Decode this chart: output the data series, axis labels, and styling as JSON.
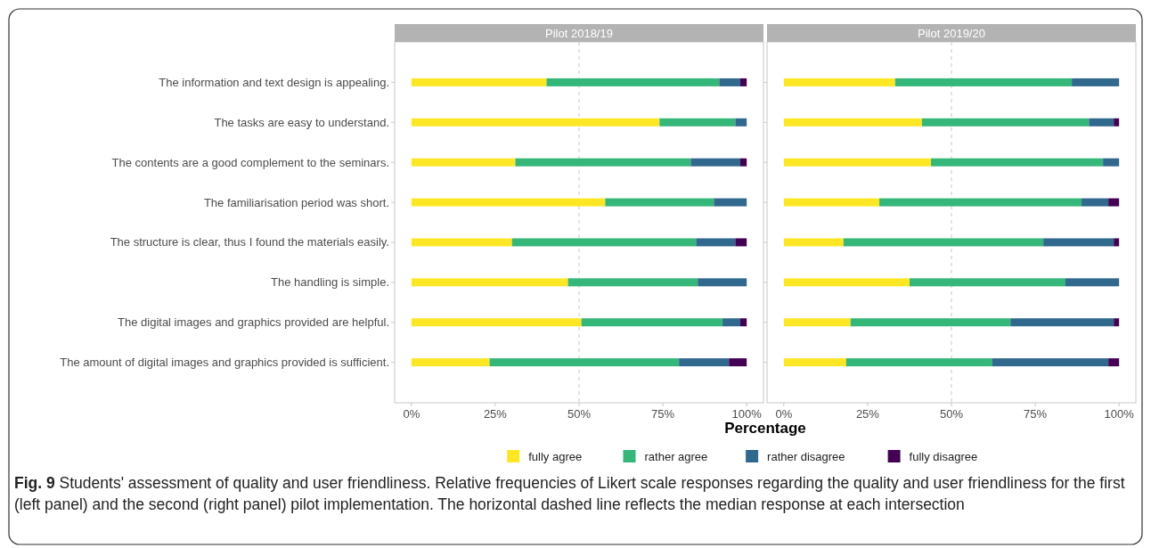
{
  "chart_data": [
    {
      "type": "bar",
      "orientation": "horizontal",
      "stacked": true,
      "title": "Pilot 2018/19",
      "xlabel": "Percentage",
      "categories": [
        "The information and text design is appealing.",
        "The tasks are easy to understand.",
        "The contents are a good complement to the seminars.",
        "The familiarisation period was short.",
        "The structure is clear, thus I found the materials easily.",
        "The handling is simple.",
        "The digital images and graphics provided are helpful.",
        "The amount of digital images and graphics provided is sufficient."
      ],
      "series": [
        {
          "name": "fully agree",
          "color": "#fde725",
          "values": [
            40.3,
            74.0,
            31.0,
            57.8,
            30.0,
            46.7,
            50.7,
            23.3
          ]
        },
        {
          "name": "rather agree",
          "color": "#35b779",
          "values": [
            51.5,
            22.6,
            52.3,
            32.4,
            54.9,
            38.7,
            42.1,
            56.5
          ]
        },
        {
          "name": "rather disagree",
          "color": "#31688e",
          "values": [
            6.3,
            3.4,
            14.8,
            9.8,
            11.7,
            14.6,
            5.3,
            14.9
          ]
        },
        {
          "name": "fully disagree",
          "color": "#440154",
          "values": [
            1.9,
            0,
            1.9,
            0,
            3.4,
            0,
            1.9,
            5.3
          ]
        }
      ],
      "xlim": [
        -5,
        105
      ],
      "xticks": [
        {
          "value": 0,
          "label": "0%"
        },
        {
          "value": 25,
          "label": "25%"
        },
        {
          "value": 50,
          "label": "50%"
        },
        {
          "value": 75,
          "label": "75%"
        },
        {
          "value": 100,
          "label": "100%"
        }
      ],
      "ref_lines": [
        {
          "axis": "x",
          "value": 50,
          "color": "#c8c8c8",
          "line_style": "dashed"
        }
      ],
      "legend": "bottom",
      "grid": false,
      "annotations": [
        "Fig. 9",
        "Students' assessment of quality and user friendliness. Relative frequencies of Likert scale responses regarding the quality and user friendliness for the first (left panel) and the second (right panel) pilot implementation. The horizontal dashed line reflects the median response at each intersection"
      ]
    },
    {
      "type": "bar",
      "orientation": "horizontal",
      "stacked": true,
      "title": "Pilot 2019/20",
      "tick_labels": "x",
      "categories": [
        null,
        null,
        null,
        null,
        null,
        null,
        null,
        null
      ],
      "series": [
        {
          "color": "#fde725",
          "values": [
            33.2,
            41.2,
            43.9,
            28.5,
            17.8,
            37.5,
            19.9,
            18.6
          ]
        },
        {
          "color": "#35b779",
          "values": [
            52.7,
            49.8,
            51.3,
            60.3,
            59.6,
            46.5,
            47.7,
            43.6
          ]
        },
        {
          "color": "#31688e",
          "values": [
            14.1,
            7.4,
            4.8,
            8.0,
            21.0,
            16.0,
            30.8,
            34.6
          ]
        },
        {
          "color": "#440154",
          "values": [
            0,
            1.6,
            0,
            3.2,
            1.6,
            0,
            1.6,
            3.2
          ]
        }
      ],
      "xlim": [
        -5,
        105
      ],
      "xticks": [
        {
          "value": 0,
          "label": "0%"
        },
        {
          "value": 25,
          "label": "25%"
        },
        {
          "value": 50,
          "label": "50%"
        },
        {
          "value": 75,
          "label": "75%"
        },
        {
          "value": 100,
          "label": "100%"
        }
      ],
      "ref_lines": [
        {
          "axis": "x",
          "value": 50,
          "color": "#c8c8c8",
          "line_style": "dashed"
        }
      ],
      "grid": false
    }
  ]
}
